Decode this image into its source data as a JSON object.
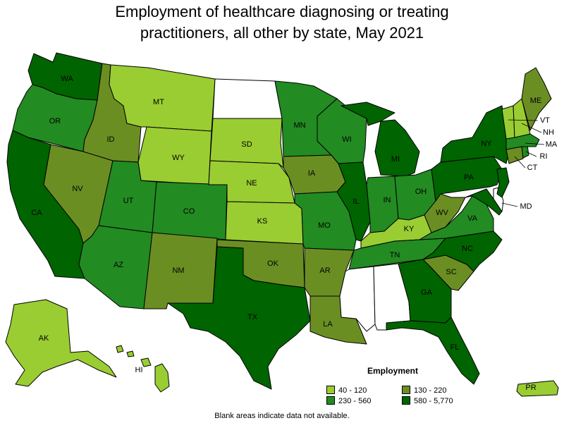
{
  "title": {
    "line1": "Employment of healthcare diagnosing or treating",
    "line2": "practitioners, all other by state, May 2021"
  },
  "colors": {
    "bin1": "#9acd32",
    "bin2": "#6b8e23",
    "bin3": "#228b22",
    "bin4": "#006400",
    "na": "#ffffff"
  },
  "legend": {
    "title": "Employment",
    "items": [
      {
        "label": "40 - 120",
        "bin": "bin1"
      },
      {
        "label": "130 - 220",
        "bin": "bin2"
      },
      {
        "label": "230 - 560",
        "bin": "bin3"
      },
      {
        "label": "580 - 5,770",
        "bin": "bin4"
      }
    ]
  },
  "footnote": "Blank areas indicate data not available.",
  "states": {
    "WA": "bin4",
    "OR": "bin3",
    "CA": "bin4",
    "ID": "bin2",
    "NV": "bin2",
    "MT": "bin1",
    "WY": "bin1",
    "UT": "bin3",
    "AZ": "bin3",
    "CO": "bin3",
    "NM": "bin2",
    "ND": "na",
    "SD": "bin1",
    "NE": "bin1",
    "KS": "bin1",
    "OK": "bin2",
    "TX": "bin4",
    "MN": "bin3",
    "IA": "bin2",
    "MO": "bin3",
    "AR": "bin2",
    "LA": "bin2",
    "WI": "bin3",
    "IL": "bin4",
    "MI": "bin4",
    "IN": "bin3",
    "OH": "bin3",
    "KY": "bin1",
    "TN": "bin3",
    "MS": "na",
    "AL": "na",
    "GA": "bin4",
    "FL": "bin4",
    "SC": "bin2",
    "NC": "bin4",
    "VA": "bin3",
    "WV": "bin2",
    "PA": "bin4",
    "NY": "bin4",
    "ME": "bin2",
    "VT": "bin1",
    "NH": "bin1",
    "MA": "bin3",
    "RI": "bin3",
    "CT": "bin2",
    "NJ": "bin4",
    "DE": "na",
    "MD": "bin4",
    "AK": "bin1",
    "HI": "bin1",
    "PR": "bin1"
  },
  "labels": {
    "WA": "WA",
    "OR": "OR",
    "CA": "CA",
    "ID": "ID",
    "NV": "NV",
    "MT": "MT",
    "WY": "WY",
    "UT": "UT",
    "AZ": "AZ",
    "CO": "CO",
    "NM": "NM",
    "SD": "SD",
    "NE": "NE",
    "KS": "KS",
    "OK": "OK",
    "TX": "TX",
    "MN": "MN",
    "IA": "IA",
    "MO": "MO",
    "AR": "AR",
    "LA": "LA",
    "WI": "WI",
    "IL": "IL",
    "MI": "MI",
    "IN": "IN",
    "OH": "OH",
    "KY": "KY",
    "TN": "TN",
    "GA": "GA",
    "FL": "FL",
    "SC": "SC",
    "NC": "NC",
    "VA": "VA",
    "WV": "WV",
    "PA": "PA",
    "NY": "NY",
    "ME": "ME",
    "VT": "VT",
    "NH": "NH",
    "MA": "MA",
    "RI": "RI",
    "CT": "CT",
    "MD": "MD",
    "AK": "AK",
    "HI": "HI",
    "PR": "PR"
  }
}
